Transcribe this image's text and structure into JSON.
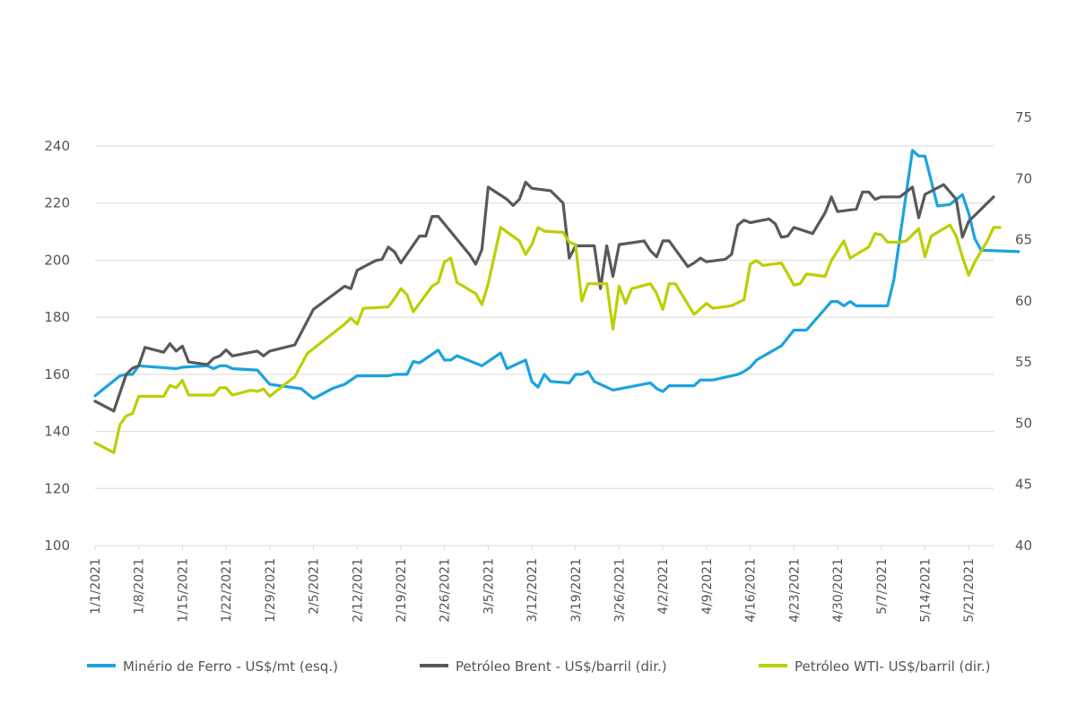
{
  "chart_data": {
    "type": "line",
    "title": "",
    "x_ticks": [
      "1/1/2021",
      "1/8/2021",
      "1/15/2021",
      "1/22/2021",
      "1/29/2021",
      "2/5/2021",
      "2/12/2021",
      "2/19/2021",
      "2/26/2021",
      "3/5/2021",
      "3/12/2021",
      "3/19/2021",
      "3/26/2021",
      "4/2/2021",
      "4/9/2021",
      "4/16/2021",
      "4/23/2021",
      "4/30/2021",
      "5/7/2021",
      "5/14/2021",
      "5/21/2021"
    ],
    "x_start": "1/1/2021",
    "x_end": "5/25/2021",
    "y_left": {
      "min": 100,
      "max": 240,
      "ticks": [
        100,
        120,
        140,
        160,
        180,
        200,
        220,
        240
      ]
    },
    "y_right": {
      "min": 40,
      "max": 75,
      "ticks": [
        40,
        45,
        50,
        55,
        60,
        65,
        70,
        75
      ]
    },
    "grid": "horizontal",
    "legend_position": "bottom",
    "series": [
      {
        "name": "Minério de Ferro - US$/mt (esq.)",
        "axis": "left",
        "color": "#1aa3de",
        "points": [
          [
            "1/1/2021",
            152.5
          ],
          [
            "1/5/2021",
            159.5
          ],
          [
            "1/6/2021",
            160.0
          ],
          [
            "1/7/2021",
            160.0
          ],
          [
            "1/8/2021",
            163.0
          ],
          [
            "1/14/2021",
            162.0
          ],
          [
            "1/15/2021",
            162.5
          ],
          [
            "1/19/2021",
            163.0
          ],
          [
            "1/20/2021",
            162.0
          ],
          [
            "1/21/2021",
            163.0
          ],
          [
            "1/22/2021",
            163.0
          ],
          [
            "1/23/2021",
            162.0
          ],
          [
            "1/27/2021",
            161.5
          ],
          [
            "1/29/2021",
            156.5
          ],
          [
            "2/3/2021",
            155.0
          ],
          [
            "2/5/2021",
            151.5
          ],
          [
            "2/8/2021",
            155.0
          ],
          [
            "2/10/2021",
            156.5
          ],
          [
            "2/12/2021",
            159.5
          ],
          [
            "2/17/2021",
            159.5
          ],
          [
            "2/18/2021",
            160.0
          ],
          [
            "2/20/2021",
            160.0
          ],
          [
            "2/21/2021",
            164.5
          ],
          [
            "2/22/2021",
            164.0
          ],
          [
            "2/25/2021",
            168.5
          ],
          [
            "2/26/2021",
            165.0
          ],
          [
            "2/27/2021",
            165.0
          ],
          [
            "2/28/2021",
            166.5
          ],
          [
            "3/4/2021",
            163.0
          ],
          [
            "3/7/2021",
            167.5
          ],
          [
            "3/8/2021",
            162.0
          ],
          [
            "3/11/2021",
            165.0
          ],
          [
            "3/12/2021",
            157.5
          ],
          [
            "3/13/2021",
            155.5
          ],
          [
            "3/14/2021",
            160.0
          ],
          [
            "3/15/2021",
            157.5
          ],
          [
            "3/18/2021",
            157.0
          ],
          [
            "3/19/2021",
            160.0
          ],
          [
            "3/20/2021",
            160.0
          ],
          [
            "3/21/2021",
            161.0
          ],
          [
            "3/22/2021",
            157.5
          ],
          [
            "3/25/2021",
            154.5
          ],
          [
            "3/31/2021",
            157.0
          ],
          [
            "4/1/2021",
            155.0
          ],
          [
            "4/2/2021",
            154.0
          ],
          [
            "4/3/2021",
            156.0
          ],
          [
            "4/7/2021",
            156.0
          ],
          [
            "4/8/2021",
            158.0
          ],
          [
            "4/10/2021",
            158.0
          ],
          [
            "4/14/2021",
            160.0
          ],
          [
            "4/15/2021",
            161.0
          ],
          [
            "4/16/2021",
            162.5
          ],
          [
            "4/17/2021",
            165.0
          ],
          [
            "4/21/2021",
            170.0
          ],
          [
            "4/23/2021",
            175.5
          ],
          [
            "4/25/2021",
            175.5
          ],
          [
            "4/29/2021",
            185.5
          ],
          [
            "4/30/2021",
            185.5
          ],
          [
            "5/1/2021",
            184.0
          ],
          [
            "5/2/2021",
            185.5
          ],
          [
            "5/3/2021",
            184.0
          ],
          [
            "5/8/2021",
            184.0
          ],
          [
            "5/9/2021",
            193.0
          ],
          [
            "5/12/2021",
            238.5
          ],
          [
            "5/13/2021",
            236.5
          ],
          [
            "5/14/2021",
            236.5
          ],
          [
            "5/16/2021",
            219.0
          ],
          [
            "5/18/2021",
            219.5
          ],
          [
            "5/20/2021",
            223.0
          ],
          [
            "5/21/2021",
            216.5
          ],
          [
            "5/22/2021",
            207.5
          ],
          [
            "5/23/2021",
            203.5
          ],
          [
            "5/29/2021",
            203.0
          ]
        ]
      },
      {
        "name": "Petróleo Brent - US$/barril (dir.)",
        "axis": "right",
        "color": "#58595b",
        "points": [
          [
            "1/1/2021",
            51.8
          ],
          [
            "1/4/2021",
            51.0
          ],
          [
            "1/6/2021",
            54.0
          ],
          [
            "1/7/2021",
            54.5
          ],
          [
            "1/8/2021",
            54.7
          ],
          [
            "1/9/2021",
            56.2
          ],
          [
            "1/12/2021",
            55.8
          ],
          [
            "1/13/2021",
            56.5
          ],
          [
            "1/14/2021",
            55.9
          ],
          [
            "1/15/2021",
            56.3
          ],
          [
            "1/16/2021",
            55.0
          ],
          [
            "1/19/2021",
            54.8
          ],
          [
            "1/20/2021",
            55.3
          ],
          [
            "1/21/2021",
            55.5
          ],
          [
            "1/22/2021",
            56.0
          ],
          [
            "1/23/2021",
            55.5
          ],
          [
            "1/26/2021",
            55.8
          ],
          [
            "1/27/2021",
            55.9
          ],
          [
            "1/28/2021",
            55.5
          ],
          [
            "1/29/2021",
            55.9
          ],
          [
            "2/2/2021",
            56.4
          ],
          [
            "2/5/2021",
            59.3
          ],
          [
            "2/10/2021",
            61.2
          ],
          [
            "2/11/2021",
            61.0
          ],
          [
            "2/12/2021",
            62.5
          ],
          [
            "2/15/2021",
            63.3
          ],
          [
            "2/16/2021",
            63.4
          ],
          [
            "2/17/2021",
            64.4
          ],
          [
            "2/18/2021",
            64.0
          ],
          [
            "2/19/2021",
            63.1
          ],
          [
            "2/22/2021",
            65.3
          ],
          [
            "2/23/2021",
            65.3
          ],
          [
            "2/24/2021",
            66.9
          ],
          [
            "2/25/2021",
            66.9
          ],
          [
            "3/2/2021",
            63.8
          ],
          [
            "3/3/2021",
            63.0
          ],
          [
            "3/4/2021",
            64.2
          ],
          [
            "3/5/2021",
            69.3
          ],
          [
            "3/8/2021",
            68.3
          ],
          [
            "3/9/2021",
            67.8
          ],
          [
            "3/10/2021",
            68.3
          ],
          [
            "3/11/2021",
            69.7
          ],
          [
            "3/12/2021",
            69.2
          ],
          [
            "3/15/2021",
            69.0
          ],
          [
            "3/17/2021",
            68.0
          ],
          [
            "3/18/2021",
            63.5
          ],
          [
            "3/19/2021",
            64.5
          ],
          [
            "3/22/2021",
            64.5
          ],
          [
            "3/23/2021",
            61.0
          ],
          [
            "3/24/2021",
            64.5
          ],
          [
            "3/25/2021",
            62.0
          ],
          [
            "3/26/2021",
            64.6
          ],
          [
            "3/30/2021",
            64.9
          ],
          [
            "3/31/2021",
            64.1
          ],
          [
            "4/1/2021",
            63.6
          ],
          [
            "4/2/2021",
            64.9
          ],
          [
            "4/3/2021",
            64.9
          ],
          [
            "4/6/2021",
            62.8
          ],
          [
            "4/7/2021",
            63.1
          ],
          [
            "4/8/2021",
            63.5
          ],
          [
            "4/9/2021",
            63.2
          ],
          [
            "4/12/2021",
            63.4
          ],
          [
            "4/13/2021",
            63.8
          ],
          [
            "4/14/2021",
            66.2
          ],
          [
            "4/15/2021",
            66.6
          ],
          [
            "4/16/2021",
            66.4
          ],
          [
            "4/19/2021",
            66.7
          ],
          [
            "4/20/2021",
            66.3
          ],
          [
            "4/21/2021",
            65.2
          ],
          [
            "4/22/2021",
            65.3
          ],
          [
            "4/23/2021",
            66.0
          ],
          [
            "4/26/2021",
            65.5
          ],
          [
            "4/28/2021",
            67.2
          ],
          [
            "4/29/2021",
            68.5
          ],
          [
            "4/30/2021",
            67.3
          ],
          [
            "5/3/2021",
            67.5
          ],
          [
            "5/4/2021",
            68.9
          ],
          [
            "5/5/2021",
            68.9
          ],
          [
            "5/6/2021",
            68.3
          ],
          [
            "5/7/2021",
            68.5
          ],
          [
            "5/10/2021",
            68.5
          ],
          [
            "5/12/2021",
            69.3
          ],
          [
            "5/13/2021",
            66.8
          ],
          [
            "5/14/2021",
            68.7
          ],
          [
            "5/17/2021",
            69.5
          ],
          [
            "5/19/2021",
            68.3
          ],
          [
            "5/20/2021",
            65.2
          ],
          [
            "5/21/2021",
            66.5
          ],
          [
            "5/24/2021",
            68.0
          ],
          [
            "5/25/2021",
            68.5
          ]
        ]
      },
      {
        "name": "Petróleo WTI- US$/barril (dir.)",
        "axis": "right",
        "color": "#bccf00",
        "points": [
          [
            "1/1/2021",
            48.4
          ],
          [
            "1/4/2021",
            47.6
          ],
          [
            "1/5/2021",
            49.9
          ],
          [
            "1/6/2021",
            50.6
          ],
          [
            "1/7/2021",
            50.8
          ],
          [
            "1/8/2021",
            52.2
          ],
          [
            "1/12/2021",
            52.2
          ],
          [
            "1/13/2021",
            53.1
          ],
          [
            "1/14/2021",
            52.9
          ],
          [
            "1/15/2021",
            53.5
          ],
          [
            "1/16/2021",
            52.3
          ],
          [
            "1/19/2021",
            52.3
          ],
          [
            "1/20/2021",
            52.3
          ],
          [
            "1/21/2021",
            52.9
          ],
          [
            "1/22/2021",
            52.9
          ],
          [
            "1/23/2021",
            52.3
          ],
          [
            "1/26/2021",
            52.7
          ],
          [
            "1/27/2021",
            52.6
          ],
          [
            "1/28/2021",
            52.8
          ],
          [
            "1/29/2021",
            52.2
          ],
          [
            "2/2/2021",
            53.8
          ],
          [
            "2/4/2021",
            55.7
          ],
          [
            "2/8/2021",
            57.3
          ],
          [
            "2/10/2021",
            58.1
          ],
          [
            "2/11/2021",
            58.6
          ],
          [
            "2/12/2021",
            58.1
          ],
          [
            "2/13/2021",
            59.4
          ],
          [
            "2/17/2021",
            59.5
          ],
          [
            "2/18/2021",
            60.2
          ],
          [
            "2/19/2021",
            61.0
          ],
          [
            "2/20/2021",
            60.5
          ],
          [
            "2/21/2021",
            59.1
          ],
          [
            "2/24/2021",
            61.2
          ],
          [
            "2/25/2021",
            61.5
          ],
          [
            "2/26/2021",
            63.2
          ],
          [
            "2/27/2021",
            63.5
          ],
          [
            "2/28/2021",
            61.5
          ],
          [
            "3/3/2021",
            60.6
          ],
          [
            "3/4/2021",
            59.7
          ],
          [
            "3/5/2021",
            61.4
          ],
          [
            "3/7/2021",
            66.0
          ],
          [
            "3/10/2021",
            64.9
          ],
          [
            "3/11/2021",
            63.8
          ],
          [
            "3/12/2021",
            64.6
          ],
          [
            "3/13/2021",
            66.0
          ],
          [
            "3/14/2021",
            65.7
          ],
          [
            "3/17/2021",
            65.6
          ],
          [
            "3/18/2021",
            64.8
          ],
          [
            "3/19/2021",
            64.6
          ],
          [
            "3/20/2021",
            60.0
          ],
          [
            "3/21/2021",
            61.4
          ],
          [
            "3/24/2021",
            61.4
          ],
          [
            "3/25/2021",
            57.7
          ],
          [
            "3/26/2021",
            61.2
          ],
          [
            "3/27/2021",
            59.8
          ],
          [
            "3/28/2021",
            61.0
          ],
          [
            "3/31/2021",
            61.4
          ],
          [
            "4/1/2021",
            60.6
          ],
          [
            "4/2/2021",
            59.3
          ],
          [
            "4/3/2021",
            61.4
          ],
          [
            "4/4/2021",
            61.4
          ],
          [
            "4/7/2021",
            58.9
          ],
          [
            "4/9/2021",
            59.8
          ],
          [
            "4/10/2021",
            59.4
          ],
          [
            "4/13/2021",
            59.6
          ],
          [
            "4/15/2021",
            60.1
          ],
          [
            "4/16/2021",
            63.0
          ],
          [
            "4/17/2021",
            63.3
          ],
          [
            "4/18/2021",
            62.9
          ],
          [
            "4/21/2021",
            63.1
          ],
          [
            "4/23/2021",
            61.3
          ],
          [
            "4/24/2021",
            61.4
          ],
          [
            "4/25/2021",
            62.2
          ],
          [
            "4/28/2021",
            62.0
          ],
          [
            "4/29/2021",
            63.3
          ],
          [
            "5/1/2021",
            64.9
          ],
          [
            "5/2/2021",
            63.5
          ],
          [
            "5/3/2021",
            63.8
          ],
          [
            "5/5/2021",
            64.4
          ],
          [
            "5/6/2021",
            65.5
          ],
          [
            "5/7/2021",
            65.4
          ],
          [
            "5/8/2021",
            64.8
          ],
          [
            "5/10/2021",
            64.8
          ],
          [
            "5/11/2021",
            64.9
          ],
          [
            "5/13/2021",
            65.9
          ],
          [
            "5/14/2021",
            63.6
          ],
          [
            "5/15/2021",
            65.3
          ],
          [
            "5/18/2021",
            66.2
          ],
          [
            "5/19/2021",
            65.3
          ],
          [
            "5/20/2021",
            63.6
          ],
          [
            "5/21/2021",
            62.1
          ],
          [
            "5/22/2021",
            63.2
          ],
          [
            "5/24/2021",
            64.9
          ],
          [
            "5/25/2021",
            66.0
          ],
          [
            "5/26/2021",
            66.0
          ]
        ]
      }
    ]
  }
}
